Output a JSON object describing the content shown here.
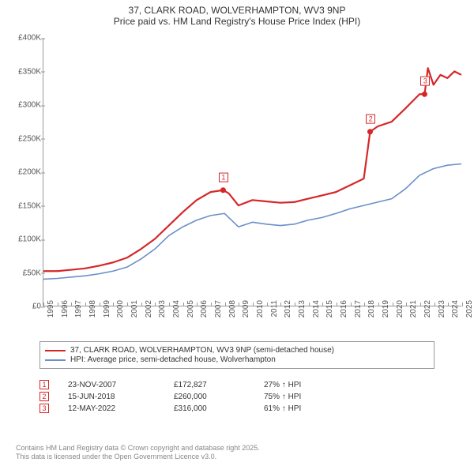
{
  "title": {
    "line1": "37, CLARK ROAD, WOLVERHAMPTON, WV3 9NP",
    "line2": "Price paid vs. HM Land Registry's House Price Index (HPI)"
  },
  "chart": {
    "type": "line",
    "background_color": "#ffffff",
    "axis_color": "#999999",
    "ylim": [
      0,
      400000
    ],
    "ytick_step": 50000,
    "ytick_labels": [
      "£0",
      "£50K",
      "£100K",
      "£150K",
      "£200K",
      "£250K",
      "£300K",
      "£350K",
      "£400K"
    ],
    "xlim": [
      1995,
      2025
    ],
    "xtick_labels": [
      "1995",
      "1996",
      "1997",
      "1998",
      "1999",
      "2000",
      "2001",
      "2002",
      "2003",
      "2004",
      "2005",
      "2006",
      "2007",
      "2008",
      "2009",
      "2010",
      "2011",
      "2012",
      "2013",
      "2014",
      "2015",
      "2016",
      "2017",
      "2018",
      "2019",
      "2020",
      "2021",
      "2022",
      "2023",
      "2024",
      "2025"
    ],
    "tick_fontsize": 10,
    "series": [
      {
        "name": "37, CLARK ROAD, WOLVERHAMPTON, WV3 9NP (semi-detached house)",
        "color": "#d62728",
        "line_width": 2.2,
        "points": [
          [
            1995,
            52000
          ],
          [
            1996,
            52000
          ],
          [
            1997,
            54000
          ],
          [
            1998,
            56000
          ],
          [
            1999,
            60000
          ],
          [
            2000,
            65000
          ],
          [
            2001,
            72000
          ],
          [
            2002,
            85000
          ],
          [
            2003,
            100000
          ],
          [
            2004,
            120000
          ],
          [
            2005,
            140000
          ],
          [
            2006,
            158000
          ],
          [
            2007,
            170000
          ],
          [
            2007.9,
            172827
          ],
          [
            2008.3,
            168000
          ],
          [
            2009,
            150000
          ],
          [
            2010,
            158000
          ],
          [
            2011,
            156000
          ],
          [
            2012,
            154000
          ],
          [
            2013,
            155000
          ],
          [
            2014,
            160000
          ],
          [
            2015,
            165000
          ],
          [
            2016,
            170000
          ],
          [
            2017,
            180000
          ],
          [
            2018,
            190000
          ],
          [
            2018.45,
            260000
          ],
          [
            2019,
            268000
          ],
          [
            2020,
            275000
          ],
          [
            2021,
            295000
          ],
          [
            2022,
            316000
          ],
          [
            2022.36,
            316000
          ],
          [
            2022.6,
            355000
          ],
          [
            2023,
            330000
          ],
          [
            2023.5,
            345000
          ],
          [
            2024,
            340000
          ],
          [
            2024.5,
            350000
          ],
          [
            2025,
            345000
          ]
        ]
      },
      {
        "name": "HPI: Average price, semi-detached house, Wolverhampton",
        "color": "#6b8fc9",
        "line_width": 1.6,
        "points": [
          [
            1995,
            40000
          ],
          [
            1996,
            41000
          ],
          [
            1997,
            43000
          ],
          [
            1998,
            45000
          ],
          [
            1999,
            48000
          ],
          [
            2000,
            52000
          ],
          [
            2001,
            58000
          ],
          [
            2002,
            70000
          ],
          [
            2003,
            85000
          ],
          [
            2004,
            105000
          ],
          [
            2005,
            118000
          ],
          [
            2006,
            128000
          ],
          [
            2007,
            135000
          ],
          [
            2008,
            138000
          ],
          [
            2009,
            118000
          ],
          [
            2010,
            125000
          ],
          [
            2011,
            122000
          ],
          [
            2012,
            120000
          ],
          [
            2013,
            122000
          ],
          [
            2014,
            128000
          ],
          [
            2015,
            132000
          ],
          [
            2016,
            138000
          ],
          [
            2017,
            145000
          ],
          [
            2018,
            150000
          ],
          [
            2019,
            155000
          ],
          [
            2020,
            160000
          ],
          [
            2021,
            175000
          ],
          [
            2022,
            195000
          ],
          [
            2023,
            205000
          ],
          [
            2024,
            210000
          ],
          [
            2025,
            212000
          ]
        ]
      }
    ],
    "sale_markers": [
      {
        "idx": "1",
        "x": 2007.9,
        "y": 172827,
        "color": "#d62728"
      },
      {
        "idx": "2",
        "x": 2018.45,
        "y": 260000,
        "color": "#d62728"
      },
      {
        "idx": "3",
        "x": 2022.36,
        "y": 316000,
        "color": "#d62728"
      }
    ]
  },
  "legend": {
    "items": [
      {
        "color": "#d62728",
        "label": "37, CLARK ROAD, WOLVERHAMPTON, WV3 9NP (semi-detached house)"
      },
      {
        "color": "#6b8fc9",
        "label": "HPI: Average price, semi-detached house, Wolverhampton"
      }
    ]
  },
  "sales": [
    {
      "idx": "1",
      "date": "23-NOV-2007",
      "price": "£172,827",
      "diff": "27% ↑ HPI",
      "color": "#d62728"
    },
    {
      "idx": "2",
      "date": "15-JUN-2018",
      "price": "£260,000",
      "diff": "75% ↑ HPI",
      "color": "#d62728"
    },
    {
      "idx": "3",
      "date": "12-MAY-2022",
      "price": "£316,000",
      "diff": "61% ↑ HPI",
      "color": "#d62728"
    }
  ],
  "attribution": {
    "line1": "Contains HM Land Registry data © Crown copyright and database right 2025.",
    "line2": "This data is licensed under the Open Government Licence v3.0."
  }
}
